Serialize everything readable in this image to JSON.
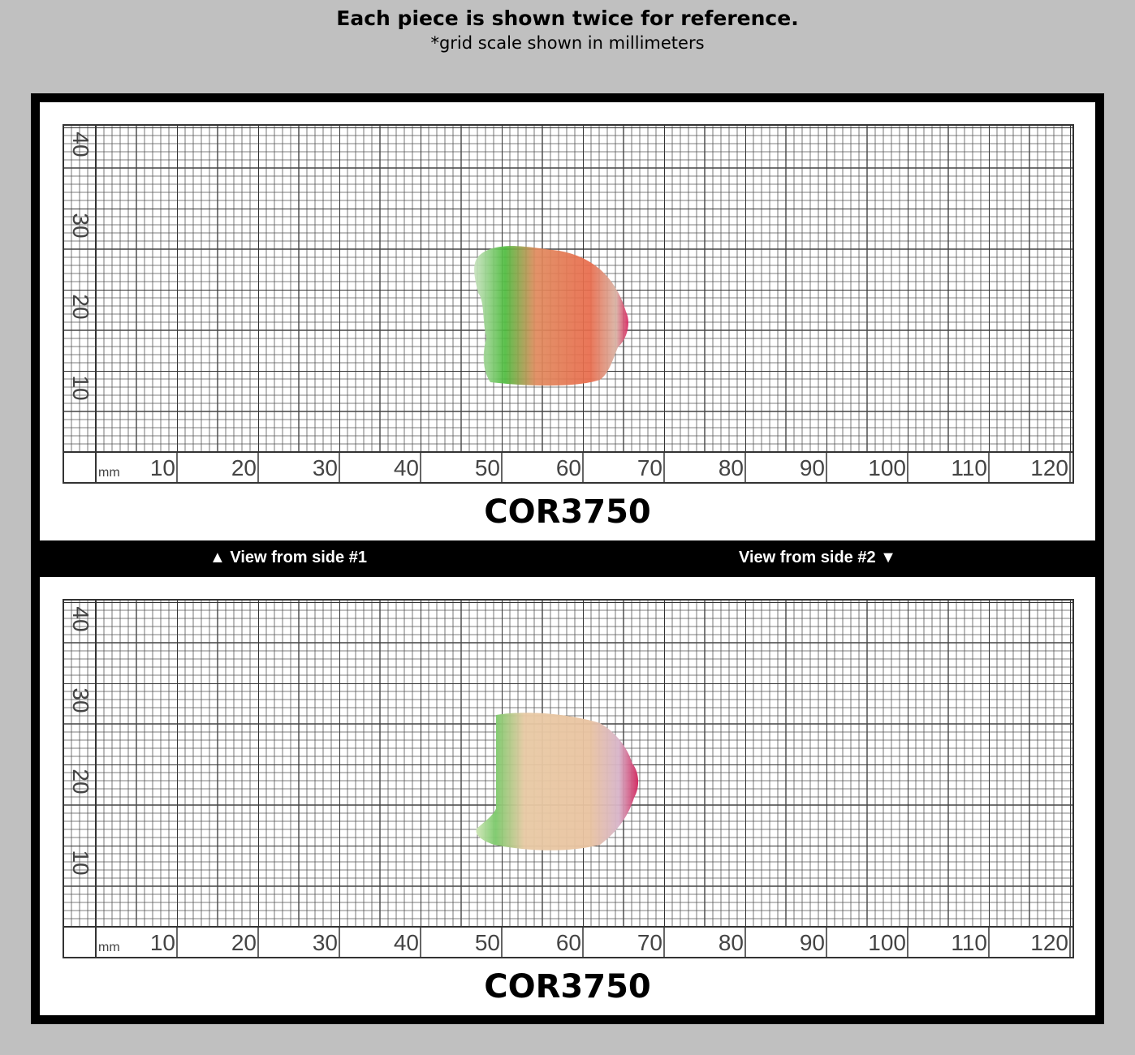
{
  "header": {
    "title": "Each piece is shown twice for reference.",
    "subtitle": "*grid scale shown in millimeters"
  },
  "panels": [
    {
      "x_ticks": [
        10,
        20,
        30,
        40,
        50,
        60,
        70,
        80,
        90,
        100,
        110,
        120
      ],
      "y_ticks": [
        10,
        20,
        30,
        40
      ],
      "unit": "mm",
      "code": "COR3750"
    },
    {
      "x_ticks": [
        10,
        20,
        30,
        40,
        50,
        60,
        70,
        80,
        90,
        100,
        110,
        120
      ],
      "y_ticks": [
        10,
        20,
        30,
        40
      ],
      "unit": "mm",
      "code": "COR3750"
    }
  ],
  "band": {
    "left": "▲ View from side #1",
    "right": "View from side #2 ▼"
  }
}
